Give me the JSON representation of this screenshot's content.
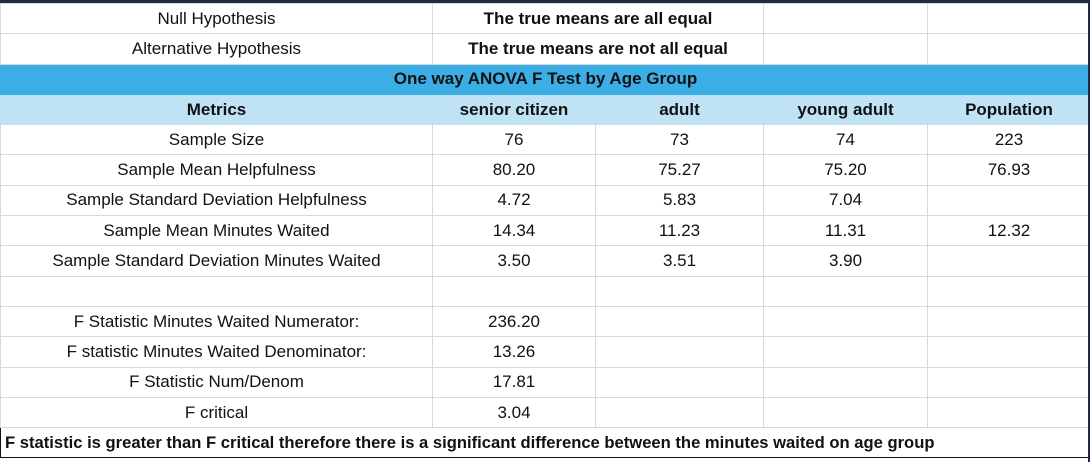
{
  "hypotheses": {
    "null_label": "Null Hypothesis",
    "null_value": "The true means are all equal",
    "alt_label": "Alternative Hypothesis",
    "alt_value": "The true means are not all equal"
  },
  "section_title": "One way ANOVA F Test by Age Group",
  "columns": [
    "Metrics",
    "senior citizen",
    "adult",
    "young adult",
    "Population"
  ],
  "rows": [
    {
      "metric": "Sample Size",
      "senior": "76",
      "adult": "73",
      "young": "74",
      "pop": "223"
    },
    {
      "metric": "Sample Mean Helpfulness",
      "senior": "80.20",
      "adult": "75.27",
      "young": "75.20",
      "pop": "76.93"
    },
    {
      "metric": "Sample Standard Deviation Helpfulness",
      "senior": "4.72",
      "adult": "5.83",
      "young": "7.04",
      "pop": ""
    },
    {
      "metric": "Sample Mean Minutes Waited",
      "senior": "14.34",
      "adult": "11.23",
      "young": "11.31",
      "pop": "12.32"
    },
    {
      "metric": "Sample Standard Deviation Minutes Waited",
      "senior": "3.50",
      "adult": "3.51",
      "young": "3.90",
      "pop": ""
    }
  ],
  "stats": [
    {
      "label": "F Statistic Minutes Waited Numerator:",
      "value": "236.20"
    },
    {
      "label": "F statistic Minutes Waited Denominator:",
      "value": "13.26"
    },
    {
      "label": "F Statistic Num/Denom",
      "value": "17.81"
    },
    {
      "label": "F critical",
      "value": "3.04"
    }
  ],
  "conclusion": "F statistic is greater than F critical therefore there is a significant difference between the minutes waited on age group",
  "colors": {
    "band": "#3caee6",
    "header": "#bfe3f5",
    "grid": "#d9d9d9",
    "frame": "#1f2a44"
  }
}
